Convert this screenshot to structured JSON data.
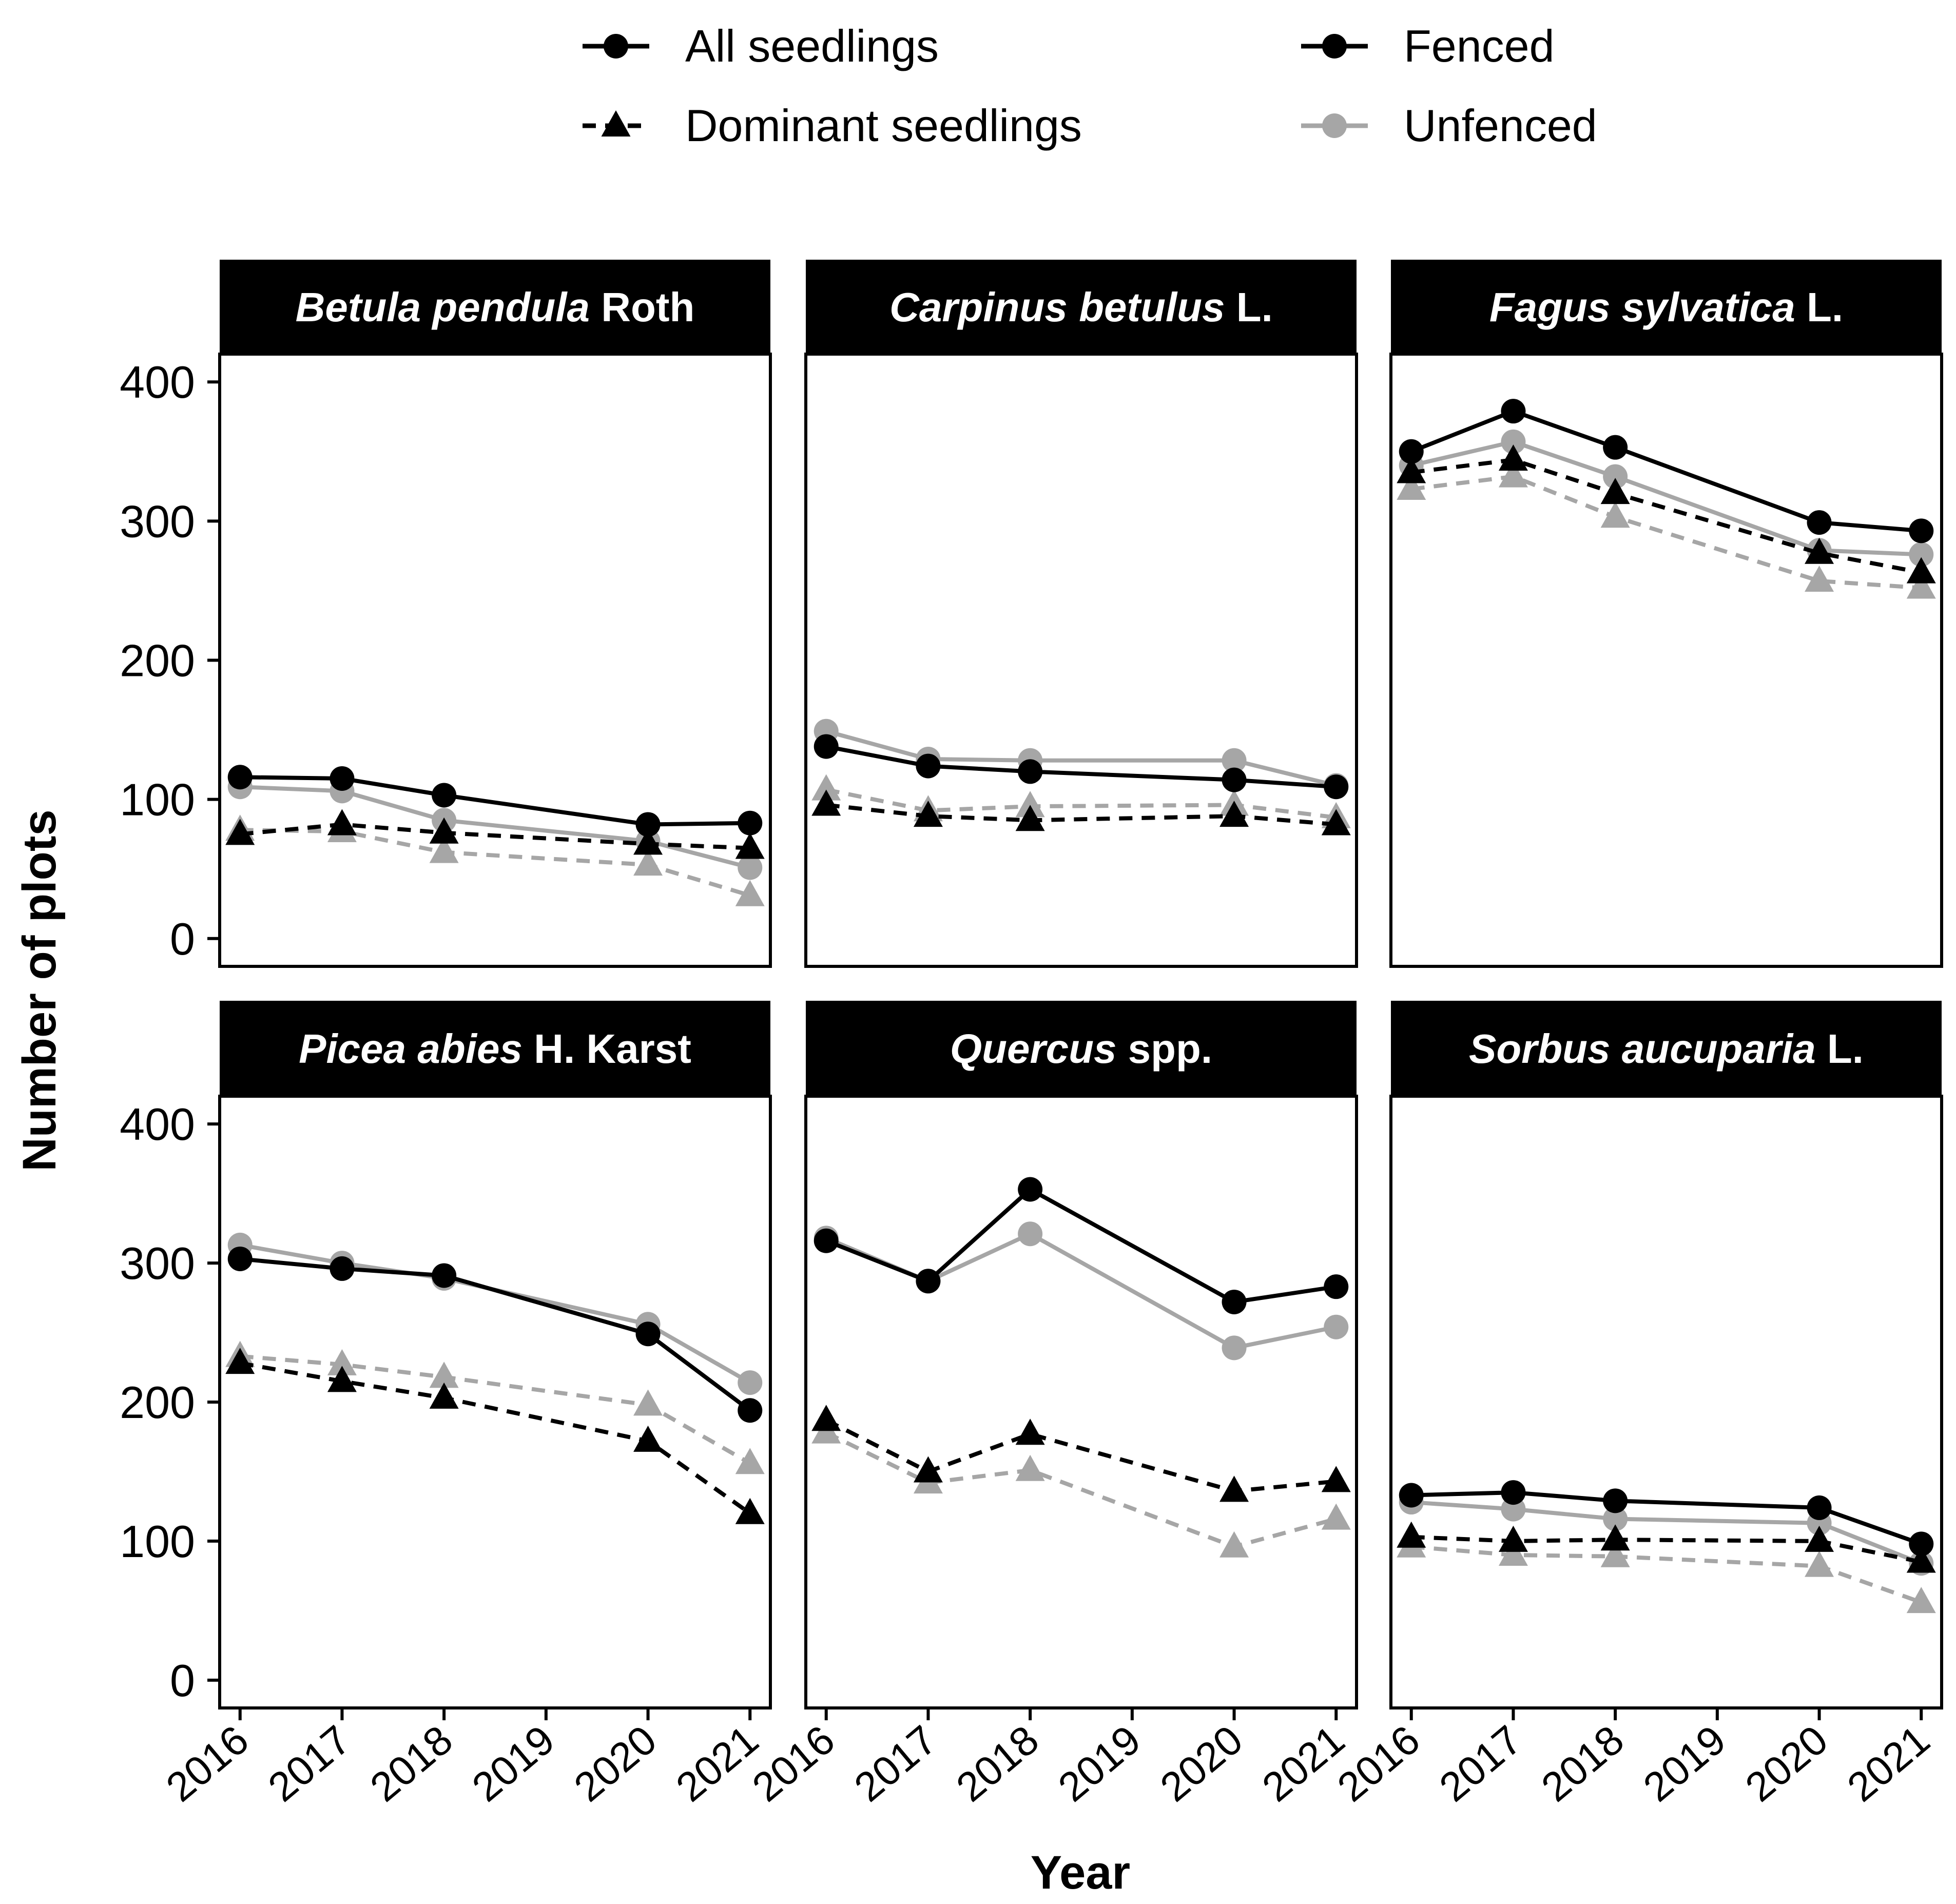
{
  "legend": {
    "linetypes": [
      {
        "label": "All seedlings",
        "style": "solid",
        "marker": "circle"
      },
      {
        "label": "Dominant seedlings",
        "style": "dashed",
        "marker": "triangle"
      }
    ],
    "colors": [
      {
        "label": "Fenced",
        "color": "#000000"
      },
      {
        "label": "Unfenced",
        "color": "#a6a6a6"
      }
    ]
  },
  "chart_data": {
    "type": "line",
    "xlabel": "Year",
    "ylabel": "Number of plots",
    "x_ticks": [
      "2016",
      "2017",
      "2018",
      "2019",
      "2020",
      "2021"
    ],
    "y_ticks": [
      0,
      100,
      200,
      300,
      400
    ],
    "ylim": [
      -20,
      420
    ],
    "xlim": [
      2015.8,
      2021.2
    ],
    "x": [
      2016,
      2017,
      2018,
      2020,
      2021
    ],
    "colors": {
      "Fenced": "#000000",
      "Unfenced": "#a6a6a6"
    },
    "panels": [
      {
        "title_italic": "Betula pendula",
        "title_rest": " Roth",
        "series": [
          {
            "group": "All seedlings",
            "treatment": "Fenced",
            "values": [
              116,
              115,
              103,
              82,
              83
            ]
          },
          {
            "group": "All seedlings",
            "treatment": "Unfenced",
            "values": [
              109,
              106,
              85,
              70,
              51
            ]
          },
          {
            "group": "Dominant seedlings",
            "treatment": "Fenced",
            "values": [
              75,
              82,
              76,
              68,
              65
            ]
          },
          {
            "group": "Dominant seedlings",
            "treatment": "Unfenced",
            "values": [
              78,
              77,
              62,
              53,
              31
            ]
          }
        ]
      },
      {
        "title_italic": "Carpinus betulus",
        "title_rest": " L.",
        "series": [
          {
            "group": "All seedlings",
            "treatment": "Fenced",
            "values": [
              138,
              124,
              120,
              114,
              109
            ]
          },
          {
            "group": "All seedlings",
            "treatment": "Unfenced",
            "values": [
              149,
              129,
              128,
              128,
              110
            ]
          },
          {
            "group": "Dominant seedlings",
            "treatment": "Fenced",
            "values": [
              96,
              88,
              85,
              88,
              82
            ]
          },
          {
            "group": "Dominant seedlings",
            "treatment": "Unfenced",
            "values": [
              107,
              92,
              95,
              96,
              87
            ]
          }
        ]
      },
      {
        "title_italic": "Fagus sylvatica",
        "title_rest": " L.",
        "series": [
          {
            "group": "All seedlings",
            "treatment": "Fenced",
            "values": [
              350,
              379,
              353,
              299,
              293
            ]
          },
          {
            "group": "All seedlings",
            "treatment": "Unfenced",
            "values": [
              340,
              357,
              332,
              279,
              276
            ]
          },
          {
            "group": "Dominant seedlings",
            "treatment": "Fenced",
            "values": [
              335,
              344,
              320,
              277,
              263
            ]
          },
          {
            "group": "Dominant seedlings",
            "treatment": "Unfenced",
            "values": [
              323,
              332,
              303,
              257,
              252
            ]
          }
        ]
      },
      {
        "title_italic": "Picea abies",
        "title_rest": " H. Karst",
        "series": [
          {
            "group": "All seedlings",
            "treatment": "Fenced",
            "values": [
              303,
              296,
              291,
              249,
              194
            ]
          },
          {
            "group": "All seedlings",
            "treatment": "Unfenced",
            "values": [
              313,
              300,
              289,
              256,
              214
            ]
          },
          {
            "group": "Dominant seedlings",
            "treatment": "Fenced",
            "values": [
              228,
              215,
              203,
              172,
              120
            ]
          },
          {
            "group": "Dominant seedlings",
            "treatment": "Unfenced",
            "values": [
              233,
              227,
              218,
              198,
              156
            ]
          }
        ]
      },
      {
        "title_italic": "Quercus",
        "title_rest": " spp.",
        "series": [
          {
            "group": "All seedlings",
            "treatment": "Fenced",
            "values": [
              316,
              287,
              353,
              272,
              283
            ]
          },
          {
            "group": "All seedlings",
            "treatment": "Unfenced",
            "values": [
              318,
              287,
              321,
              239,
              254
            ]
          },
          {
            "group": "Dominant seedlings",
            "treatment": "Fenced",
            "values": [
              187,
              150,
              177,
              136,
              143
            ]
          },
          {
            "group": "Dominant seedlings",
            "treatment": "Unfenced",
            "values": [
              178,
              142,
              151,
              96,
              116
            ]
          }
        ]
      },
      {
        "title_italic": "Sorbus aucuparia",
        "title_rest": " L.",
        "series": [
          {
            "group": "All seedlings",
            "treatment": "Fenced",
            "values": [
              133,
              135,
              129,
              124,
              98
            ]
          },
          {
            "group": "All seedlings",
            "treatment": "Unfenced",
            "values": [
              128,
              123,
              116,
              113,
              84
            ]
          },
          {
            "group": "Dominant seedlings",
            "treatment": "Fenced",
            "values": [
              103,
              100,
              101,
              100,
              85
            ]
          },
          {
            "group": "Dominant seedlings",
            "treatment": "Unfenced",
            "values": [
              96,
              90,
              89,
              82,
              56
            ]
          }
        ]
      }
    ]
  }
}
